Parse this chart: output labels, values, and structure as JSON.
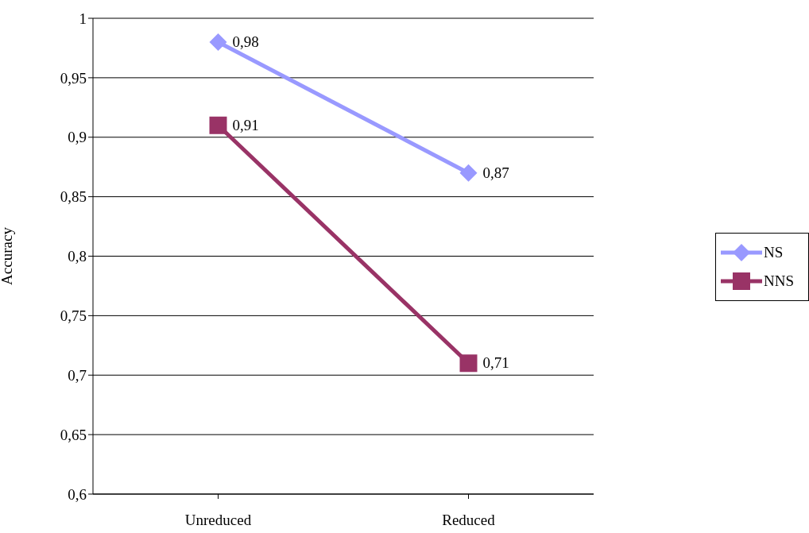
{
  "chart_data": {
    "type": "line",
    "ylabel": "Accuracy",
    "categories": [
      "Unreduced",
      "Reduced"
    ],
    "series": [
      {
        "name": "NS",
        "color": "#9999ff",
        "values": [
          0.98,
          0.87
        ],
        "value_labels": [
          "0,98",
          "0,87"
        ],
        "marker": "diamond"
      },
      {
        "name": "NNS",
        "color": "#993366",
        "values": [
          0.91,
          0.71
        ],
        "value_labels": [
          "0,91",
          "0,71"
        ],
        "marker": "square"
      }
    ],
    "ylim": [
      0.6,
      1
    ],
    "yticks": [
      {
        "value": 0.6,
        "label": "0,6"
      },
      {
        "value": 0.65,
        "label": "0,65"
      },
      {
        "value": 0.7,
        "label": "0,7"
      },
      {
        "value": 0.75,
        "label": "0,75"
      },
      {
        "value": 0.8,
        "label": "0,8"
      },
      {
        "value": 0.85,
        "label": "0,85"
      },
      {
        "value": 0.9,
        "label": "0,9"
      },
      {
        "value": 0.95,
        "label": "0,95"
      },
      {
        "value": 1,
        "label": "1"
      }
    ],
    "grid": "y",
    "legend": "right",
    "line_style": "solid"
  }
}
